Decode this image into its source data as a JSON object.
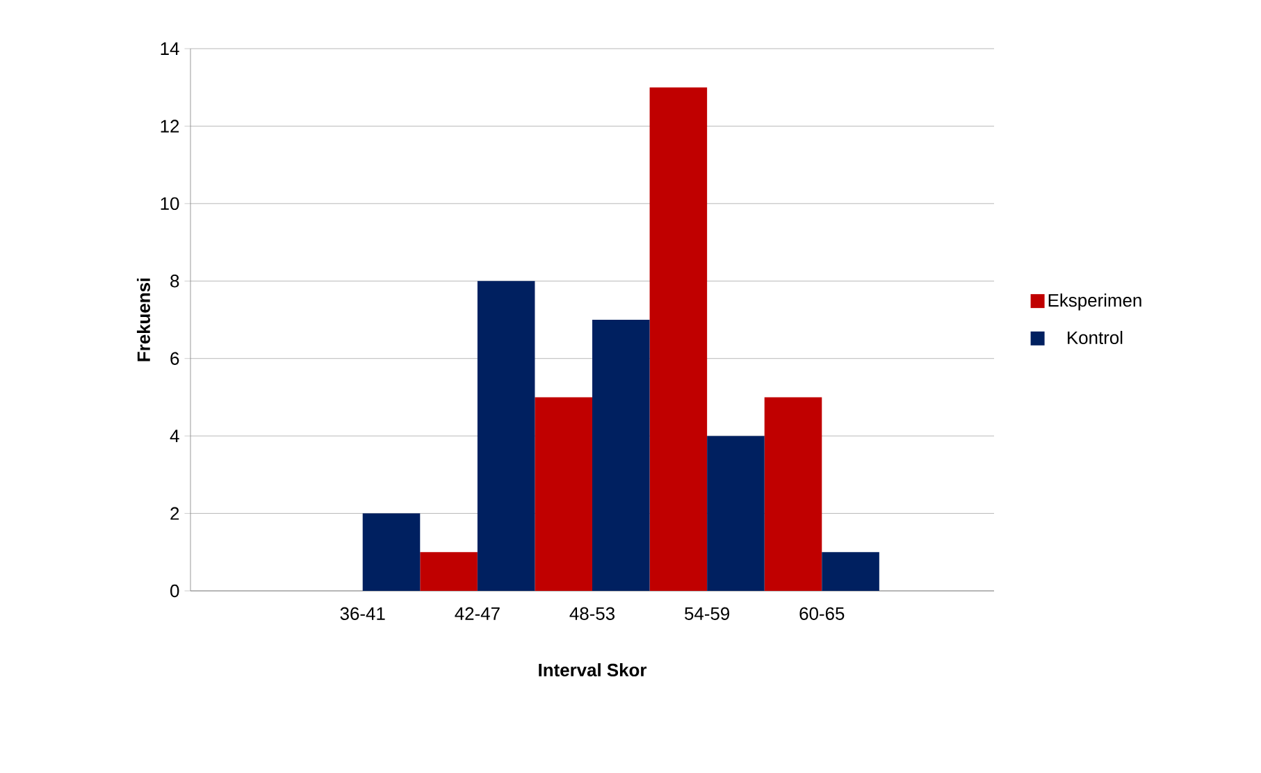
{
  "chart_data": {
    "type": "bar",
    "xlabel": "Interval Skor",
    "ylabel": "Frekuensi",
    "categories": [
      null,
      "36-41",
      "42-47",
      "48-53",
      "54-59",
      "60-65",
      null
    ],
    "series": [
      {
        "name": "Eksperimen",
        "color": "#c00000",
        "values": [
          null,
          0,
          1,
          5,
          13,
          5,
          null
        ]
      },
      {
        "name": "Kontrol",
        "color": "#002060",
        "values": [
          null,
          2,
          8,
          7,
          4,
          1,
          null
        ]
      }
    ],
    "ylim": [
      0,
      14
    ],
    "yticks": [
      0,
      2,
      4,
      6,
      8,
      10,
      12,
      14
    ],
    "grid": "y",
    "legend": "right"
  }
}
